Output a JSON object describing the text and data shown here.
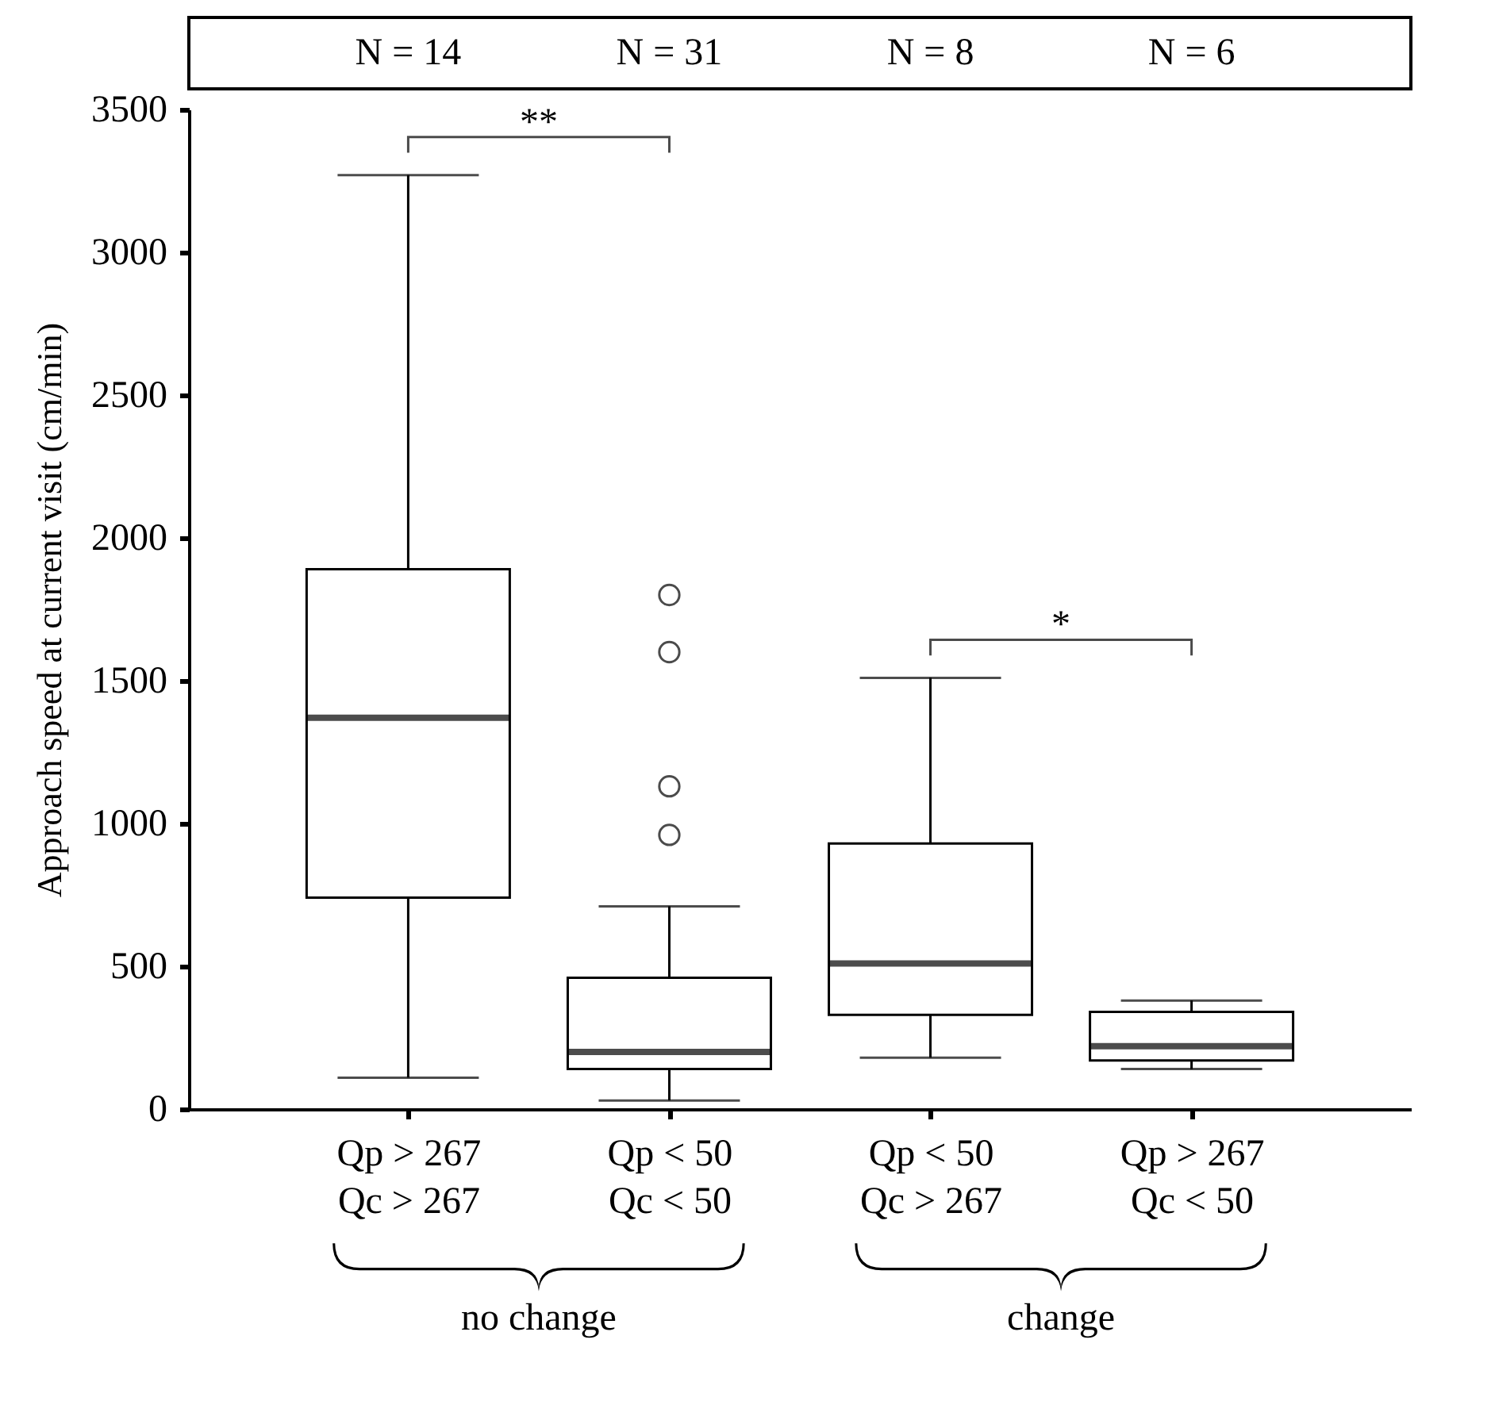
{
  "chart_data": {
    "type": "box",
    "ylabel": "Approach speed at current visit (cm/min)",
    "categories": [
      "Qp > 267\nQc > 267",
      "Qp < 50\nQc < 50",
      "Qp < 50\nQc > 267",
      "Qp > 267\nQc < 50"
    ],
    "boxes": [
      {
        "low": 110,
        "q1": 740,
        "median": 1370,
        "q3": 1890,
        "high": 3270
      },
      {
        "low": 30,
        "q1": 140,
        "median": 200,
        "q3": 460,
        "high": 710,
        "outliers": [
          960,
          1130,
          1600,
          1800
        ]
      },
      {
        "low": 180,
        "q1": 330,
        "median": 510,
        "q3": 930,
        "high": 1510
      },
      {
        "low": 140,
        "q1": 170,
        "median": 220,
        "q3": 340,
        "high": 380
      }
    ],
    "ylim": [
      0,
      3500
    ],
    "yticks": [
      0,
      500,
      1000,
      1500,
      2000,
      2500,
      3000,
      3500
    ],
    "annotations": [
      "N = 14",
      "N = 31",
      "N = 8",
      "N = 6",
      "**",
      "*",
      "no change",
      "change"
    ]
  }
}
